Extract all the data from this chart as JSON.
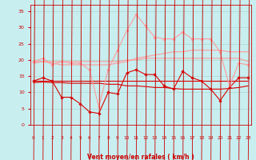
{
  "x": [
    0,
    1,
    2,
    3,
    4,
    5,
    6,
    7,
    8,
    9,
    10,
    11,
    12,
    13,
    14,
    15,
    16,
    17,
    18,
    19,
    20,
    21,
    22,
    23
  ],
  "series": [
    {
      "name": "dark_wiggly",
      "color": "#dd0000",
      "linewidth": 0.8,
      "marker": "D",
      "markersize": 1.8,
      "y": [
        13.5,
        14.5,
        13.5,
        8.5,
        8.5,
        6.5,
        4.0,
        3.5,
        10.0,
        9.5,
        16.0,
        17.0,
        15.5,
        15.5,
        12.0,
        11.0,
        16.5,
        14.5,
        13.5,
        11.0,
        7.5,
        11.5,
        14.5,
        14.5
      ]
    },
    {
      "name": "dark_flat1",
      "color": "#dd0000",
      "linewidth": 0.8,
      "marker": null,
      "markersize": 0,
      "y": [
        13.5,
        13.5,
        13.5,
        13.5,
        13.5,
        13.5,
        13.5,
        13.5,
        13.5,
        13.5,
        13.5,
        13.5,
        13.5,
        13.5,
        13.5,
        13.5,
        13.5,
        13.5,
        13.5,
        13.5,
        13.5,
        13.5,
        13.5,
        13.5
      ]
    },
    {
      "name": "dark_declining",
      "color": "#dd0000",
      "linewidth": 0.8,
      "marker": null,
      "markersize": 0,
      "y": [
        13.0,
        13.2,
        13.0,
        13.0,
        12.8,
        12.8,
        12.8,
        12.8,
        12.5,
        12.5,
        12.0,
        12.0,
        11.8,
        11.5,
        11.5,
        11.2,
        11.0,
        11.0,
        11.0,
        11.0,
        11.0,
        11.2,
        11.5,
        12.0
      ]
    },
    {
      "name": "light_wiggly",
      "color": "#ff9999",
      "linewidth": 0.8,
      "marker": "D",
      "markersize": 1.8,
      "y": [
        19.5,
        20.5,
        18.5,
        19.5,
        19.0,
        19.0,
        17.0,
        5.5,
        17.0,
        23.0,
        29.0,
        34.0,
        30.5,
        27.0,
        26.5,
        26.5,
        28.5,
        26.5,
        26.5,
        26.5,
        22.5,
        12.0,
        19.0,
        18.5
      ]
    },
    {
      "name": "light_rising",
      "color": "#ff9999",
      "linewidth": 0.8,
      "marker": null,
      "markersize": 0,
      "y": [
        19.0,
        19.5,
        19.0,
        18.5,
        18.5,
        18.5,
        18.5,
        18.5,
        18.5,
        19.0,
        19.5,
        20.5,
        21.0,
        21.5,
        22.0,
        22.5,
        22.5,
        23.0,
        23.0,
        23.0,
        23.0,
        22.5,
        22.5,
        22.5
      ]
    },
    {
      "name": "light_flat",
      "color": "#ff9999",
      "linewidth": 0.8,
      "marker": null,
      "markersize": 0,
      "y": [
        19.5,
        19.5,
        19.5,
        19.5,
        19.5,
        19.5,
        19.5,
        19.5,
        19.5,
        19.5,
        20.0,
        20.0,
        20.5,
        20.5,
        20.5,
        20.5,
        20.5,
        20.5,
        20.5,
        20.5,
        20.5,
        20.5,
        20.5,
        19.5
      ]
    }
  ],
  "xlim": [
    -0.3,
    23.3
  ],
  "ylim": [
    0,
    37
  ],
  "yticks": [
    0,
    5,
    10,
    15,
    20,
    25,
    30,
    35
  ],
  "xticks": [
    0,
    1,
    2,
    3,
    4,
    5,
    6,
    7,
    8,
    9,
    10,
    11,
    12,
    13,
    14,
    15,
    16,
    17,
    18,
    19,
    20,
    21,
    22,
    23
  ],
  "xlabel": "Vent moyen/en rafales ( km/h )",
  "bg_color": "#c8eef0",
  "grid_color": "#aad8cc",
  "axis_color": "#cc0000",
  "label_color": "#cc0000",
  "tick_color": "#cc0000"
}
